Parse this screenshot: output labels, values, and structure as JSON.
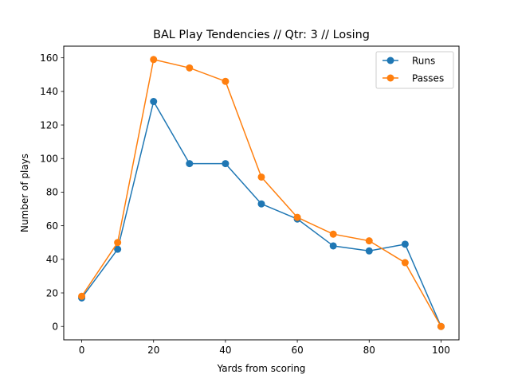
{
  "chart_data": {
    "type": "line",
    "title": "BAL Play Tendencies // Qtr: 3 // Losing",
    "xlabel": "Yards from scoring",
    "ylabel": "Number of plays",
    "x": [
      0,
      10,
      20,
      30,
      40,
      50,
      60,
      70,
      80,
      90,
      100
    ],
    "xlim": [
      -5,
      105
    ],
    "ylim": [
      -7.95,
      166.95
    ],
    "xticks": [
      0,
      20,
      40,
      60,
      80,
      100
    ],
    "yticks": [
      0,
      20,
      40,
      60,
      80,
      100,
      120,
      140,
      160
    ],
    "grid": false,
    "legend_position": "top-right",
    "series": [
      {
        "name": "Runs",
        "color": "#1f77b4",
        "values": [
          17,
          46,
          134,
          97,
          97,
          73,
          64,
          48,
          45,
          49,
          0
        ]
      },
      {
        "name": "Passes",
        "color": "#ff7f0e",
        "values": [
          18,
          50,
          159,
          154,
          146,
          89,
          65,
          55,
          51,
          38,
          0
        ]
      }
    ]
  }
}
